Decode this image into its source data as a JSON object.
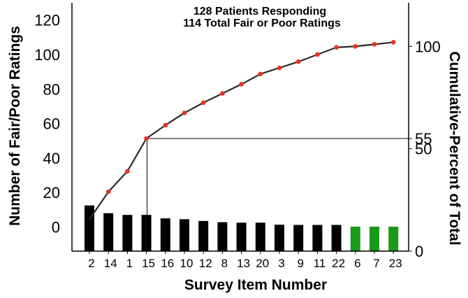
{
  "chart_data": {
    "type": "bar+line",
    "title_line1": "128 Patients Responding",
    "title_line2": "114 Total Fair or Poor Ratings",
    "xlabel": "Survey Item Number",
    "ylabel_left": "Number of Fair/Poor Ratings",
    "ylabel_right": "Cumulative-Percent of Total",
    "categories": [
      "2",
      "14",
      "1",
      "15",
      "16",
      "10",
      "12",
      "8",
      "13",
      "20",
      "3",
      "9",
      "11",
      "22",
      "6",
      "7",
      "23"
    ],
    "bar_values": [
      12.5,
      8,
      7,
      7,
      5,
      4.5,
      3.5,
      2.8,
      2.5,
      2.5,
      1.3,
      1.2,
      1.2,
      1.2,
      0.2,
      0.2,
      0.2
    ],
    "bar_colors": [
      "#000000",
      "#000000",
      "#000000",
      "#000000",
      "#000000",
      "#000000",
      "#000000",
      "#000000",
      "#000000",
      "#000000",
      "#000000",
      "#000000",
      "#000000",
      "#000000",
      "#1a9a1a",
      "#1a9a1a",
      "#1a9a1a"
    ],
    "cumulative_percent": [
      15.5,
      29,
      39,
      55,
      61.5,
      67.5,
      72.5,
      77,
      81.5,
      86.5,
      89.5,
      92.5,
      96,
      99.5,
      100,
      101,
      102
    ],
    "left_axis": {
      "ticks": [
        "0",
        "20",
        "40",
        "60",
        "80",
        "100",
        "120"
      ],
      "tick_values": [
        0,
        20,
        40,
        60,
        80,
        100,
        120
      ],
      "ylim": [
        -14,
        130
      ]
    },
    "right_axis": {
      "ticks": [
        "0",
        "50",
        "55",
        "100"
      ],
      "tick_values": [
        0,
        50,
        55,
        100
      ],
      "ylim": [
        0,
        110
      ]
    },
    "reference_line_percent": 55,
    "reference_category": "15",
    "line_color": "#2a2a2a",
    "marker_color": "#e8331c",
    "grid": false,
    "legend": "none"
  }
}
